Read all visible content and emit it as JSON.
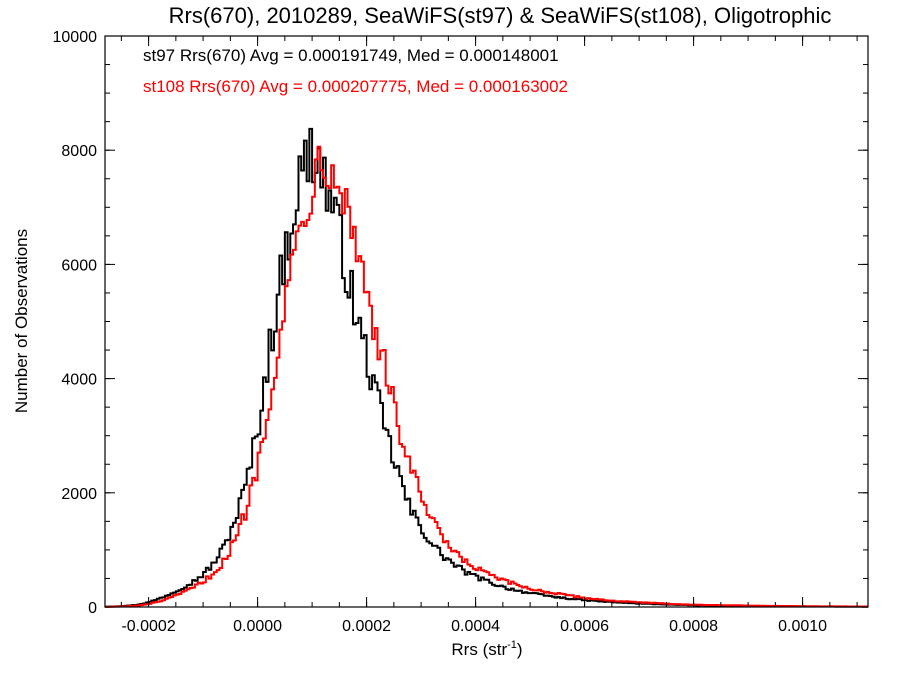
{
  "chart_data": {
    "type": "histogram",
    "title": "Rrs(670), 2010289, SeaWiFS(st97) & SeaWiFS(st108), Oligotrophic",
    "xlabel": "Rrs (str",
    "xlabel_sup": "-1",
    "xlabel_suffix": ")",
    "ylabel": "Number of Observations",
    "xlim": [
      -0.00028,
      0.00112
    ],
    "ylim": [
      0,
      10000
    ],
    "x_ticks": [
      -0.0002,
      0.0,
      0.0002,
      0.0004,
      0.0006,
      0.0008,
      0.001
    ],
    "x_tick_labels": [
      "-0.0002",
      "0.0000",
      "0.0002",
      "0.0004",
      "0.0006",
      "0.0008",
      "0.0010"
    ],
    "y_ticks": [
      0,
      2000,
      4000,
      6000,
      8000,
      10000
    ],
    "y_tick_labels": [
      "0",
      "2000",
      "4000",
      "6000",
      "8000",
      "10000"
    ],
    "grid": false,
    "annotations": [
      {
        "text": "st97 Rrs(670) Avg = 0.000191749, Med = 0.000148001",
        "color": "#000000"
      },
      {
        "text": "st108 Rrs(670) Avg = 0.000207775, Med = 0.000163002",
        "color": "#ff0000"
      }
    ],
    "bin_width": 5e-06,
    "series": [
      {
        "name": "st97",
        "color": "#000000",
        "x": [
          -0.00028,
          -0.00026,
          -0.00024,
          -0.00022,
          -0.0002,
          -0.00018,
          -0.00016,
          -0.00014,
          -0.00012,
          -0.0001,
          -8e-05,
          -6e-05,
          -4e-05,
          -2e-05,
          0.0,
          2e-05,
          4e-05,
          6e-05,
          8e-05,
          0.0001,
          0.00011,
          0.00012,
          0.00014,
          0.00016,
          0.00018,
          0.0002,
          0.00022,
          0.00024,
          0.00026,
          0.00028,
          0.0003,
          0.00032,
          0.00034,
          0.00036,
          0.00038,
          0.0004,
          0.00045,
          0.0005,
          0.00055,
          0.0006,
          0.00065,
          0.0007,
          0.00075,
          0.0008,
          0.0009,
          0.001,
          0.00112
        ],
        "y": [
          5,
          10,
          20,
          40,
          80,
          150,
          230,
          330,
          430,
          570,
          770,
          1080,
          1560,
          2200,
          3100,
          4400,
          5600,
          6700,
          7600,
          8000,
          7900,
          7600,
          6900,
          6100,
          5100,
          4400,
          3600,
          2900,
          2300,
          1700,
          1400,
          1100,
          900,
          750,
          620,
          530,
          350,
          240,
          170,
          120,
          85,
          60,
          45,
          30,
          18,
          10,
          5
        ]
      },
      {
        "name": "st108",
        "color": "#ff0000",
        "x": [
          -0.00028,
          -0.00026,
          -0.00024,
          -0.00022,
          -0.0002,
          -0.00018,
          -0.00016,
          -0.00014,
          -0.00012,
          -0.0001,
          -8e-05,
          -6e-05,
          -4e-05,
          -2e-05,
          0.0,
          2e-05,
          4e-05,
          6e-05,
          8e-05,
          0.0001,
          0.00012,
          0.00013,
          0.00014,
          0.00016,
          0.00018,
          0.0002,
          0.00022,
          0.00024,
          0.00026,
          0.00028,
          0.0003,
          0.00032,
          0.00034,
          0.00036,
          0.00038,
          0.0004,
          0.00045,
          0.0005,
          0.00055,
          0.0006,
          0.00065,
          0.0007,
          0.00075,
          0.0008,
          0.0009,
          0.001,
          0.00112
        ],
        "y": [
          3,
          6,
          12,
          25,
          50,
          100,
          160,
          240,
          330,
          440,
          600,
          820,
          1200,
          1720,
          2500,
          3600,
          4700,
          5800,
          6800,
          7500,
          7900,
          8000,
          7900,
          7200,
          6400,
          5600,
          4700,
          3900,
          3100,
          2500,
          1900,
          1500,
          1200,
          950,
          800,
          680,
          460,
          320,
          230,
          160,
          110,
          80,
          60,
          40,
          25,
          14,
          8
        ]
      }
    ]
  }
}
